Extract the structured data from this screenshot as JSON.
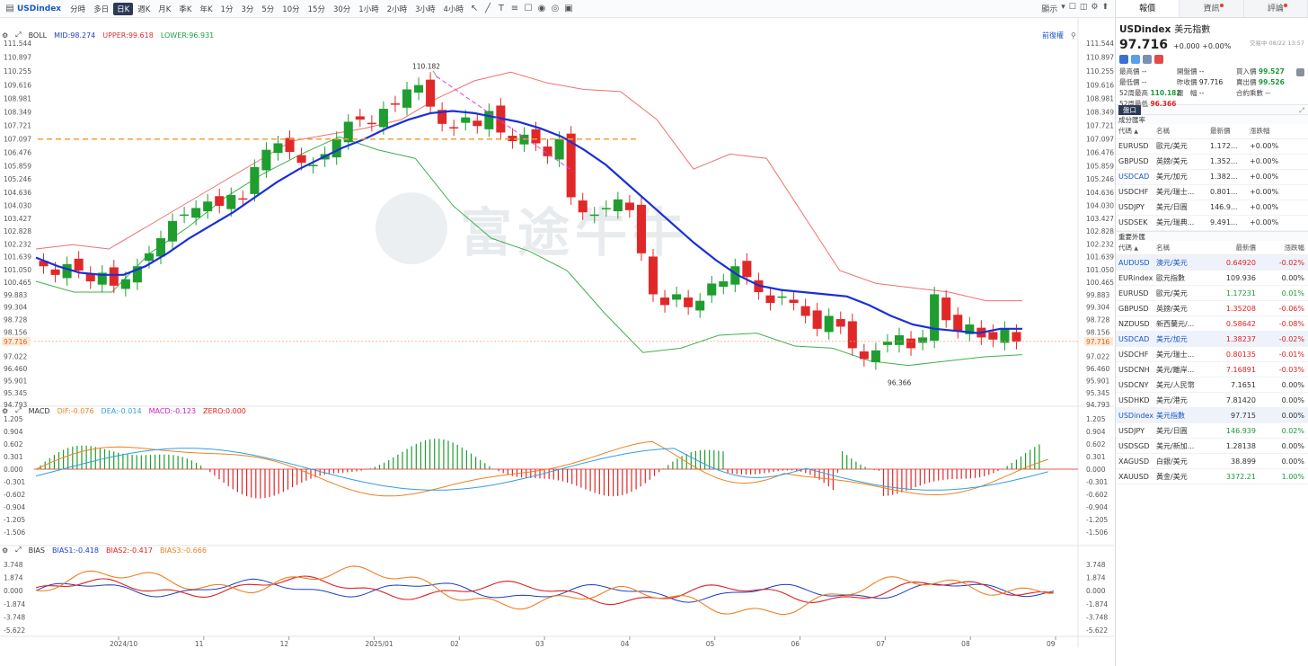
{
  "toolbar": {
    "symbol": "USDindex",
    "periods": [
      "分時",
      "多日",
      "日K",
      "週K",
      "月K",
      "季K",
      "年K",
      "1分",
      "3分",
      "5分",
      "10分",
      "15分",
      "30分",
      "1小時",
      "2小時",
      "3小時",
      "4小時"
    ],
    "active_period": "日K",
    "right_label": "顯示"
  },
  "boll": {
    "name": "BOLL",
    "mid": "MID:98.274",
    "upper": "UPPER:99.618",
    "lower": "LOWER:96.931",
    "adjust": "前復權"
  },
  "macd": {
    "name": "MACD",
    "dif": "DIF:-0.076",
    "dea": "DEA:-0.014",
    "macd": "MACD:-0.123",
    "zero": "ZERO:0.000"
  },
  "bias": {
    "name": "BIAS",
    "b1": "BIAS1:-0.418",
    "b2": "BIAS2:-0.417",
    "b3": "BIAS3:-0.666"
  },
  "price_axis": [
    "111.544",
    "110.897",
    "110.255",
    "109.616",
    "108.981",
    "108.349",
    "107.721",
    "107.097",
    "106.476",
    "105.859",
    "105.246",
    "104.636",
    "104.030",
    "103.427",
    "102.828",
    "102.232",
    "101.639",
    "101.050",
    "100.465",
    "99.883",
    "99.304",
    "98.728",
    "98.156",
    "97.716",
    "97.022",
    "96.460",
    "95.901",
    "95.345",
    "94.793"
  ],
  "macd_axis": [
    "1.205",
    "0.904",
    "0.602",
    "0.301",
    "0.000",
    "-0.301",
    "-0.602",
    "-0.904",
    "-1.205",
    "-1.506"
  ],
  "bias_axis": [
    "3.748",
    "1.874",
    "0.000",
    "-1.874",
    "-3.748",
    "-5.622"
  ],
  "x_axis": [
    "2024/10",
    "11",
    "12",
    "2025/01",
    "02",
    "03",
    "04",
    "05",
    "06",
    "07",
    "08",
    "09"
  ],
  "annotations": {
    "high": "110.182",
    "low": "96.366",
    "current": "97.716"
  },
  "watermark": "富途牛牛",
  "side": {
    "tabs": [
      "報價",
      "資訊",
      "評論"
    ],
    "symbol": "USDindex",
    "name": "美元指數",
    "price": "97.716",
    "change": "+0.000 +0.00%",
    "time": "交易中 08/22 13:57",
    "stats": [
      {
        "k": "最高價",
        "v": "--",
        "c": ""
      },
      {
        "k": "開盤價",
        "v": "--",
        "c": ""
      },
      {
        "k": "買入價",
        "v": "99.527",
        "c": "g"
      },
      {
        "k": "最低價",
        "v": "--",
        "c": ""
      },
      {
        "k": "昨收價",
        "v": "97.716",
        "c": ""
      },
      {
        "k": "賣出價",
        "v": "99.526",
        "c": "g"
      },
      {
        "k": "52周最高",
        "v": "110.182",
        "c": "g"
      },
      {
        "k": "振　幅",
        "v": "--",
        "c": ""
      },
      {
        "k": "合約乘數",
        "v": "--",
        "c": ""
      },
      {
        "k": "52周最低",
        "v": "96.366",
        "c": "r"
      },
      {
        "k": "",
        "v": "",
        "c": ""
      },
      {
        "k": "",
        "v": "",
        "c": ""
      }
    ],
    "section1_tag": "盤口",
    "section2": "成分匯率",
    "cols": [
      "代碼",
      "名稱",
      "最新價",
      "漲跌幅"
    ],
    "components": [
      {
        "code": "EURUSD",
        "name": "歐元/美元",
        "price": "1.172...",
        "chg": "+0.00%",
        "cls": ""
      },
      {
        "code": "GBPUSD",
        "name": "英鎊/美元",
        "price": "1.352...",
        "chg": "+0.00%",
        "cls": ""
      },
      {
        "code": "USDCAD",
        "name": "美元/加元",
        "price": "1.382...",
        "chg": "+0.00%",
        "cls": "hl"
      },
      {
        "code": "USDCHF",
        "name": "美元/瑞士...",
        "price": "0.801...",
        "chg": "+0.00%",
        "cls": ""
      },
      {
        "code": "USDJPY",
        "name": "美元/日圓",
        "price": "146.9...",
        "chg": "+0.00%",
        "cls": ""
      },
      {
        "code": "USDSEK",
        "name": "美元/瑞典...",
        "price": "9.491...",
        "chg": "+0.00%",
        "cls": ""
      }
    ],
    "section3": "重要外匯",
    "majors": [
      {
        "code": "AUDUSD",
        "name": "澳元/美元",
        "price": "0.64920",
        "chg": "-0.02%",
        "pc": "red",
        "cc": "red",
        "hl": true
      },
      {
        "code": "EURindex",
        "name": "歐元指數",
        "price": "109.936",
        "chg": "0.00%",
        "pc": "",
        "cc": "",
        "hl": false
      },
      {
        "code": "EURUSD",
        "name": "歐元/美元",
        "price": "1.17231",
        "chg": "0.01%",
        "pc": "green",
        "cc": "green",
        "hl": false
      },
      {
        "code": "GBPUSD",
        "name": "英鎊/美元",
        "price": "1.35208",
        "chg": "-0.06%",
        "pc": "red",
        "cc": "red",
        "hl": false
      },
      {
        "code": "NZDUSD",
        "name": "新西蘭元/...",
        "price": "0.58642",
        "chg": "-0.08%",
        "pc": "red",
        "cc": "red",
        "hl": false
      },
      {
        "code": "USDCAD",
        "name": "美元/加元",
        "price": "1.38237",
        "chg": "-0.02%",
        "pc": "red",
        "cc": "red",
        "hl": true
      },
      {
        "code": "USDCHF",
        "name": "美元/瑞士...",
        "price": "0.80135",
        "chg": "-0.01%",
        "pc": "red",
        "cc": "red",
        "hl": false
      },
      {
        "code": "USDCNH",
        "name": "美元/離岸...",
        "price": "7.16891",
        "chg": "-0.03%",
        "pc": "red",
        "cc": "red",
        "hl": false
      },
      {
        "code": "USDCNY",
        "name": "美元/人民幣",
        "price": "7.1651",
        "chg": "0.00%",
        "pc": "",
        "cc": "",
        "hl": false
      },
      {
        "code": "USDHKD",
        "name": "美元/港元",
        "price": "7.81420",
        "chg": "0.00%",
        "pc": "",
        "cc": "",
        "hl": false
      },
      {
        "code": "USDindex",
        "name": "美元指數",
        "price": "97.715",
        "chg": "0.00%",
        "pc": "",
        "cc": "",
        "hl": true
      },
      {
        "code": "USDJPY",
        "name": "美元/日圓",
        "price": "146.939",
        "chg": "0.02%",
        "pc": "green",
        "cc": "green",
        "hl": false
      },
      {
        "code": "USDSGD",
        "name": "美元/新加...",
        "price": "1.28138",
        "chg": "0.00%",
        "pc": "",
        "cc": "",
        "hl": false
      },
      {
        "code": "XAGUSD",
        "name": "白銀/美元",
        "price": "38.899",
        "chg": "0.00%",
        "pc": "",
        "cc": "",
        "hl": false
      },
      {
        "code": "XAUUSD",
        "name": "黃金/美元",
        "price": "3372.21",
        "chg": "1.00%",
        "pc": "green",
        "cc": "green",
        "hl": false
      }
    ]
  },
  "chart_data": {
    "type": "candlestick",
    "x_ticks": [
      "2024/10",
      "11",
      "12",
      "2025/01",
      "02",
      "03",
      "04",
      "05",
      "06",
      "07",
      "08",
      "09"
    ],
    "ylim": [
      94.793,
      111.544
    ],
    "close_path": [
      101.2,
      100.8,
      101.3,
      101.0,
      100.5,
      100.9,
      100.3,
      100.6,
      101.2,
      101.8,
      102.5,
      103.3,
      103.6,
      103.9,
      104.2,
      104.0,
      104.5,
      104.3,
      105.8,
      106.6,
      106.9,
      106.5,
      106.0,
      105.9,
      106.4,
      107.1,
      107.9,
      108.0,
      107.8,
      108.5,
      108.7,
      109.4,
      109.6,
      108.6,
      107.8,
      107.6,
      108.1,
      107.7,
      108.4,
      107.4,
      107.0,
      107.3,
      106.9,
      106.3,
      107.1,
      104.4,
      103.7,
      103.6,
      103.9,
      104.3,
      103.8,
      101.8,
      99.9,
      99.4,
      99.9,
      99.3,
      99.6,
      100.4,
      100.5,
      101.2,
      100.7,
      100.0,
      99.5,
      99.8,
      99.5,
      98.9,
      98.3,
      98.9,
      98.4,
      97.4,
      96.9,
      97.3,
      97.7,
      98.0,
      97.4,
      97.9,
      99.9,
      98.7,
      98.2,
      98.5,
      97.9,
      97.8,
      98.3,
      97.7
    ],
    "ma_mid_path": [
      101.6,
      101.2,
      100.9,
      100.8,
      100.8,
      101.2,
      101.8,
      102.5,
      103.1,
      103.7,
      104.4,
      105.1,
      105.7,
      106.2,
      106.7,
      107.1,
      107.6,
      108.0,
      108.3,
      108.4,
      108.3,
      108.1,
      107.9,
      107.6,
      107.2,
      106.6,
      105.9,
      105.0,
      104.1,
      103.2,
      102.3,
      101.5,
      100.8,
      100.3,
      100.1,
      100.0,
      99.9,
      99.8,
      99.4,
      98.9,
      98.5,
      98.3,
      98.2,
      98.1,
      98.3,
      98.3
    ],
    "upper_path": [
      102.0,
      102.2,
      102.0,
      103.0,
      104.0,
      105.0,
      106.0,
      107.0,
      107.3,
      107.6,
      108.0,
      109.0,
      109.8,
      110.2,
      109.7,
      109.4,
      109.3,
      108.0,
      105.7,
      106.4,
      106.2,
      103.6,
      101.0,
      100.4,
      100.2,
      100.0,
      99.6,
      99.6
    ],
    "lower_path": [
      100.5,
      100.0,
      100.0,
      101.8,
      103.0,
      104.4,
      105.5,
      106.4,
      107.2,
      106.6,
      106.2,
      104.0,
      102.5,
      101.9,
      101.0,
      99.0,
      97.2,
      97.4,
      98.0,
      98.1,
      97.5,
      97.4,
      96.8,
      96.6,
      96.8,
      97.0,
      97.1
    ],
    "resistance_line": 107.097,
    "high_marker": 110.182,
    "low_marker": 96.366,
    "current": 97.716
  }
}
